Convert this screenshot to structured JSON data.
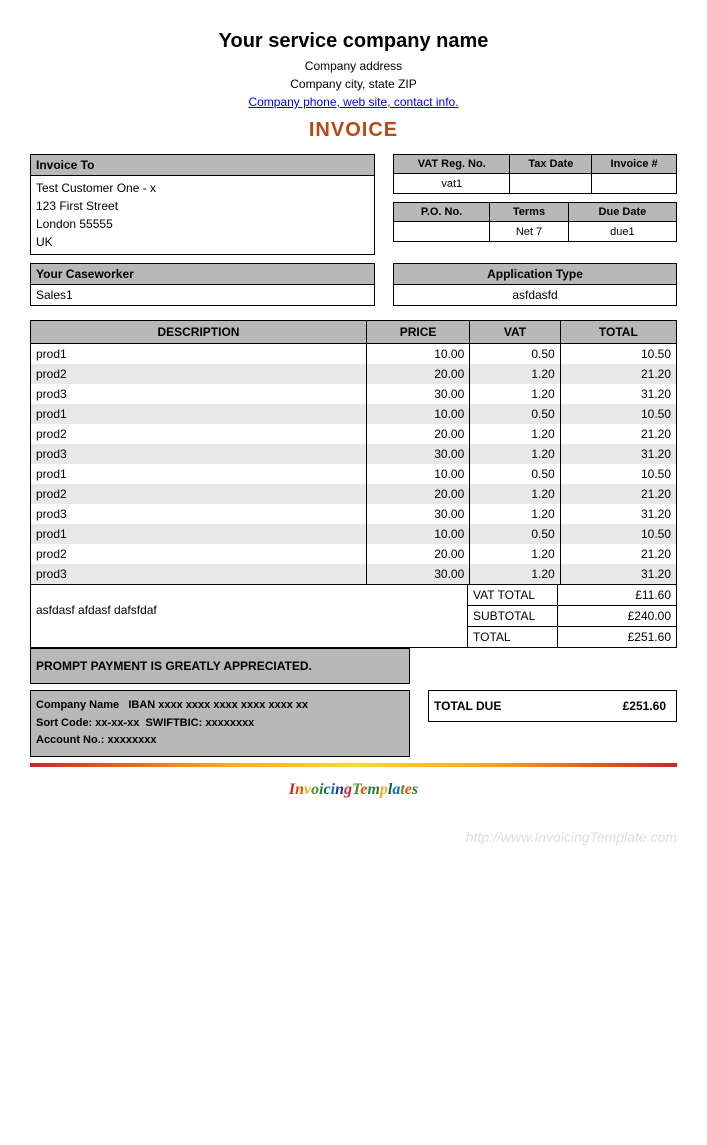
{
  "colors": {
    "header_bg": "#b8b8b8",
    "row_alt_bg": "#e8e8e8",
    "border": "#000000",
    "invoice_title": "#b54a16",
    "link": "#0000ee",
    "watermark": "#dddddd"
  },
  "header": {
    "company_name": "Your service company name",
    "address": "Company address",
    "city_state_zip": "Company city, state ZIP",
    "contact_link": "Company phone, web site, contact info."
  },
  "invoice_title": "INVOICE",
  "invoice_to": {
    "header": "Invoice To",
    "name": "Test Customer One - x",
    "street": "123 First Street",
    "city": "London 55555",
    "country": "UK"
  },
  "meta1": {
    "headers": [
      "VAT Reg. No.",
      "Tax Date",
      "Invoice #"
    ],
    "values": [
      "vat1",
      "",
      ""
    ]
  },
  "meta2": {
    "headers": [
      "P.O. No.",
      "Terms",
      "Due Date"
    ],
    "values": [
      "",
      "Net 7",
      "due1"
    ]
  },
  "caseworker": {
    "header": "Your Caseworker",
    "value": "Sales1"
  },
  "application_type": {
    "header": "Application Type",
    "value": "asfdasfd"
  },
  "items": {
    "headers": [
      "DESCRIPTION",
      "PRICE",
      "VAT",
      "TOTAL"
    ],
    "rows": [
      {
        "desc": "prod1",
        "price": "10.00",
        "vat": "0.50",
        "total": "10.50"
      },
      {
        "desc": "prod2",
        "price": "20.00",
        "vat": "1.20",
        "total": "21.20"
      },
      {
        "desc": "prod3",
        "price": "30.00",
        "vat": "1.20",
        "total": "31.20"
      },
      {
        "desc": "prod1",
        "price": "10.00",
        "vat": "0.50",
        "total": "10.50"
      },
      {
        "desc": "prod2",
        "price": "20.00",
        "vat": "1.20",
        "total": "21.20"
      },
      {
        "desc": "prod3",
        "price": "30.00",
        "vat": "1.20",
        "total": "31.20"
      },
      {
        "desc": "prod1",
        "price": "10.00",
        "vat": "0.50",
        "total": "10.50"
      },
      {
        "desc": "prod2",
        "price": "20.00",
        "vat": "1.20",
        "total": "21.20"
      },
      {
        "desc": "prod3",
        "price": "30.00",
        "vat": "1.20",
        "total": "31.20"
      },
      {
        "desc": "prod1",
        "price": "10.00",
        "vat": "0.50",
        "total": "10.50"
      },
      {
        "desc": "prod2",
        "price": "20.00",
        "vat": "1.20",
        "total": "21.20"
      },
      {
        "desc": "prod3",
        "price": "30.00",
        "vat": "1.20",
        "total": "31.20"
      }
    ]
  },
  "notes": "asfdasf afdasf dafsfdaf",
  "totals": {
    "vat_total": {
      "label": "VAT TOTAL",
      "value": "£11.60"
    },
    "subtotal": {
      "label": "SUBTOTAL",
      "value": "£240.00"
    },
    "total": {
      "label": "TOTAL",
      "value": "£251.60"
    }
  },
  "payment_msg": "PROMPT PAYMENT IS GREATLY APPRECIATED.",
  "bank": {
    "line1_label": "Company Name",
    "line1_value": "IBAN xxxx xxxx xxxx xxxx xxxx xx",
    "line2_label": "Sort Code:",
    "line2_value": "xx-xx-xx",
    "line2b_label": "SWIFTBIC:",
    "line2b_value": "xxxxxxxx",
    "line3_label": "Account No.:",
    "line3_value": "xxxxxxxx"
  },
  "total_due": {
    "label": "TOTAL DUE",
    "value": "£251.60"
  },
  "footer_logo": "InvoicingTemplates",
  "watermark": "http://www.InvoicingTemplate.com"
}
